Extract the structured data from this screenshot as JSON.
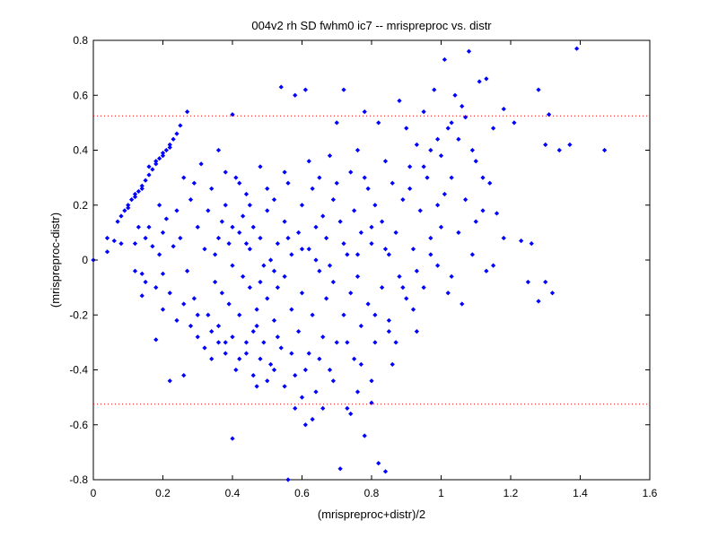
{
  "chart_data": {
    "type": "scatter",
    "title": "004v2 rh SD fwhm0 ic7 -- mrispreproc vs. distr",
    "xlabel": "(mrispreproc+distr)/2",
    "ylabel": "(mrispreproc-distr)",
    "xlim": [
      0,
      1.6
    ],
    "ylim": [
      -0.8,
      0.8
    ],
    "xticks": [
      0,
      0.2,
      0.4,
      0.6,
      0.8,
      1.0,
      1.2,
      1.4,
      1.6
    ],
    "xtick_labels": [
      "0",
      "0.2",
      "0.4",
      "0.6",
      "0.8",
      "1",
      "1.2",
      "1.4",
      "1.6"
    ],
    "yticks": [
      -0.8,
      -0.6,
      -0.4,
      -0.2,
      0,
      0.2,
      0.4,
      0.6,
      0.8
    ],
    "ytick_labels": [
      "-0.8",
      "-0.6",
      "-0.4",
      "-0.2",
      "0",
      "0.2",
      "0.4",
      "0.6",
      "0.8"
    ],
    "grid": false,
    "marker_color": "#0000ff",
    "reference_line_color": "#ff0000",
    "reference_lines_y": [
      0.525,
      -0.525
    ],
    "points": [
      [
        0.0,
        0.0
      ],
      [
        0.04,
        0.03
      ],
      [
        0.04,
        0.08
      ],
      [
        0.06,
        0.07
      ],
      [
        0.08,
        0.06
      ],
      [
        0.07,
        0.14
      ],
      [
        0.08,
        0.16
      ],
      [
        0.09,
        0.18
      ],
      [
        0.1,
        0.2
      ],
      [
        0.11,
        0.22
      ],
      [
        0.12,
        0.24
      ],
      [
        0.13,
        0.25
      ],
      [
        0.14,
        0.27
      ],
      [
        0.15,
        0.29
      ],
      [
        0.16,
        0.31
      ],
      [
        0.17,
        0.33
      ],
      [
        0.18,
        0.35
      ],
      [
        0.19,
        0.37
      ],
      [
        0.2,
        0.39
      ],
      [
        0.21,
        0.4
      ],
      [
        0.22,
        0.42
      ],
      [
        0.23,
        0.44
      ],
      [
        0.24,
        0.46
      ],
      [
        0.25,
        0.49
      ],
      [
        0.27,
        0.54
      ],
      [
        0.16,
        0.34
      ],
      [
        0.18,
        0.36
      ],
      [
        0.2,
        0.38
      ],
      [
        0.22,
        0.41
      ],
      [
        0.14,
        0.26
      ],
      [
        0.12,
        0.23
      ],
      [
        0.1,
        0.19
      ],
      [
        0.13,
        0.12
      ],
      [
        0.12,
        0.06
      ],
      [
        0.15,
        0.08
      ],
      [
        0.14,
        -0.05
      ],
      [
        0.12,
        -0.04
      ],
      [
        0.15,
        -0.08
      ],
      [
        0.14,
        -0.13
      ],
      [
        0.18,
        -0.1
      ],
      [
        0.18,
        -0.29
      ],
      [
        0.22,
        -0.44
      ],
      [
        0.26,
        -0.42
      ],
      [
        0.19,
        0.02
      ],
      [
        0.2,
        0.1
      ],
      [
        0.21,
        0.15
      ],
      [
        0.2,
        -0.05
      ],
      [
        0.16,
        0.12
      ],
      [
        0.17,
        0.05
      ],
      [
        0.19,
        0.2
      ],
      [
        0.23,
        0.05
      ],
      [
        0.24,
        0.18
      ],
      [
        0.25,
        0.08
      ],
      [
        0.26,
        0.3
      ],
      [
        0.27,
        -0.04
      ],
      [
        0.28,
        0.22
      ],
      [
        0.29,
        -0.14
      ],
      [
        0.3,
        0.12
      ],
      [
        0.3,
        -0.28
      ],
      [
        0.31,
        0.35
      ],
      [
        0.32,
        0.04
      ],
      [
        0.33,
        -0.2
      ],
      [
        0.34,
        0.26
      ],
      [
        0.34,
        -0.36
      ],
      [
        0.35,
        0.02
      ],
      [
        0.35,
        -0.08
      ],
      [
        0.36,
        0.4
      ],
      [
        0.36,
        -0.24
      ],
      [
        0.37,
        0.14
      ],
      [
        0.37,
        -0.12
      ],
      [
        0.38,
        0.2
      ],
      [
        0.38,
        -0.3
      ],
      [
        0.39,
        0.06
      ],
      [
        0.39,
        -0.16
      ],
      [
        0.4,
        0.53
      ],
      [
        0.4,
        -0.65
      ],
      [
        0.4,
        -0.02
      ],
      [
        0.41,
        0.3
      ],
      [
        0.41,
        -0.4
      ],
      [
        0.42,
        0.1
      ],
      [
        0.42,
        -0.2
      ],
      [
        0.43,
        -0.06
      ],
      [
        0.43,
        0.16
      ],
      [
        0.44,
        -0.34
      ],
      [
        0.44,
        0.24
      ],
      [
        0.45,
        -0.1
      ],
      [
        0.45,
        0.04
      ],
      [
        0.46,
        -0.26
      ],
      [
        0.46,
        0.12
      ],
      [
        0.47,
        -0.46
      ],
      [
        0.47,
        -0.18
      ],
      [
        0.48,
        0.08
      ],
      [
        0.48,
        0.34
      ],
      [
        0.49,
        -0.3
      ],
      [
        0.49,
        -0.02
      ],
      [
        0.5,
        0.18
      ],
      [
        0.5,
        -0.14
      ],
      [
        0.51,
        -0.38
      ],
      [
        0.51,
        0.0
      ],
      [
        0.52,
        0.22
      ],
      [
        0.52,
        -0.22
      ],
      [
        0.53,
        0.06
      ],
      [
        0.53,
        -0.1
      ],
      [
        0.54,
        0.63
      ],
      [
        0.54,
        -0.32
      ],
      [
        0.55,
        0.14
      ],
      [
        0.55,
        -0.06
      ],
      [
        0.56,
        -0.8
      ],
      [
        0.56,
        0.28
      ],
      [
        0.57,
        -0.18
      ],
      [
        0.57,
        0.02
      ],
      [
        0.58,
        0.6
      ],
      [
        0.58,
        -0.42
      ],
      [
        0.59,
        0.1
      ],
      [
        0.59,
        -0.26
      ],
      [
        0.6,
        0.2
      ],
      [
        0.6,
        -0.12
      ],
      [
        0.61,
        0.62
      ],
      [
        0.61,
        -0.6
      ],
      [
        0.62,
        0.04
      ],
      [
        0.62,
        -0.34
      ],
      [
        0.63,
        0.26
      ],
      [
        0.63,
        -0.2
      ],
      [
        0.64,
        0.12
      ],
      [
        0.64,
        -0.48
      ],
      [
        0.65,
        -0.04
      ],
      [
        0.65,
        0.3
      ],
      [
        0.66,
        -0.28
      ],
      [
        0.66,
        0.16
      ],
      [
        0.67,
        -0.14
      ],
      [
        0.67,
        0.08
      ],
      [
        0.68,
        0.38
      ],
      [
        0.68,
        -0.4
      ],
      [
        0.69,
        0.22
      ],
      [
        0.69,
        -0.08
      ],
      [
        0.7,
        0.5
      ],
      [
        0.7,
        -0.3
      ],
      [
        0.71,
        -0.76
      ],
      [
        0.71,
        0.14
      ],
      [
        0.72,
        0.62
      ],
      [
        0.72,
        -0.2
      ],
      [
        0.73,
        0.02
      ],
      [
        0.73,
        -0.54
      ],
      [
        0.74,
        0.32
      ],
      [
        0.74,
        -0.12
      ],
      [
        0.75,
        0.18
      ],
      [
        0.75,
        -0.36
      ],
      [
        0.76,
        -0.06
      ],
      [
        0.76,
        0.4
      ],
      [
        0.77,
        -0.24
      ],
      [
        0.77,
        0.1
      ],
      [
        0.78,
        0.54
      ],
      [
        0.78,
        -0.64
      ],
      [
        0.79,
        0.26
      ],
      [
        0.79,
        -0.16
      ],
      [
        0.8,
        0.06
      ],
      [
        0.8,
        -0.44
      ],
      [
        0.81,
        0.2
      ],
      [
        0.81,
        -0.3
      ],
      [
        0.82,
        0.5
      ],
      [
        0.82,
        -0.74
      ],
      [
        0.83,
        -0.1
      ],
      [
        0.83,
        0.14
      ],
      [
        0.84,
        -0.77
      ],
      [
        0.84,
        0.36
      ],
      [
        0.85,
        -0.22
      ],
      [
        0.85,
        0.02
      ],
      [
        0.86,
        0.28
      ],
      [
        0.86,
        -0.38
      ],
      [
        0.87,
        0.1
      ],
      [
        0.88,
        0.58
      ],
      [
        0.88,
        -0.06
      ],
      [
        0.89,
        0.22
      ],
      [
        0.9,
        0.48
      ],
      [
        0.9,
        -0.14
      ],
      [
        0.91,
        0.34
      ],
      [
        0.92,
        0.04
      ],
      [
        0.93,
        0.42
      ],
      [
        0.93,
        -0.26
      ],
      [
        0.94,
        0.18
      ],
      [
        0.95,
        0.54
      ],
      [
        0.95,
        -0.1
      ],
      [
        0.96,
        0.3
      ],
      [
        0.97,
        0.08
      ],
      [
        0.97,
        0.4
      ],
      [
        0.98,
        0.62
      ],
      [
        0.99,
        0.2
      ],
      [
        0.99,
        -0.02
      ],
      [
        1.0,
        0.38
      ],
      [
        1.0,
        0.12
      ],
      [
        1.01,
        0.73
      ],
      [
        1.01,
        0.24
      ],
      [
        1.02,
        0.48
      ],
      [
        1.03,
        -0.06
      ],
      [
        1.03,
        0.3
      ],
      [
        1.04,
        0.6
      ],
      [
        1.05,
        0.1
      ],
      [
        1.05,
        0.44
      ],
      [
        1.06,
        -0.16
      ],
      [
        1.07,
        0.22
      ],
      [
        1.07,
        0.52
      ],
      [
        1.08,
        0.76
      ],
      [
        1.09,
        0.02
      ],
      [
        1.1,
        0.36
      ],
      [
        1.11,
        0.65
      ],
      [
        1.12,
        0.18
      ],
      [
        1.13,
        0.66
      ],
      [
        1.13,
        -0.04
      ],
      [
        1.14,
        0.28
      ],
      [
        1.15,
        0.48
      ],
      [
        1.16,
        0.17
      ],
      [
        1.18,
        0.55
      ],
      [
        1.18,
        0.08
      ],
      [
        1.21,
        0.5
      ],
      [
        1.23,
        0.07
      ],
      [
        1.26,
        0.06
      ],
      [
        1.28,
        0.62
      ],
      [
        1.28,
        -0.15
      ],
      [
        1.3,
        0.42
      ],
      [
        1.3,
        -0.08
      ],
      [
        1.31,
        0.53
      ],
      [
        1.32,
        -0.12
      ],
      [
        1.34,
        0.4
      ],
      [
        1.37,
        0.42
      ],
      [
        1.39,
        0.77
      ],
      [
        1.47,
        0.4
      ],
      [
        1.25,
        -0.08
      ],
      [
        1.15,
        -0.02
      ],
      [
        1.1,
        0.14
      ],
      [
        1.02,
        -0.12
      ],
      [
        0.92,
        -0.18
      ],
      [
        0.87,
        -0.3
      ],
      [
        0.8,
        -0.52
      ],
      [
        0.76,
        -0.48
      ],
      [
        0.74,
        -0.56
      ],
      [
        0.66,
        -0.54
      ],
      [
        0.63,
        -0.58
      ],
      [
        0.6,
        -0.5
      ],
      [
        0.58,
        -0.54
      ],
      [
        0.55,
        -0.46
      ],
      [
        0.52,
        -0.4
      ],
      [
        0.5,
        -0.44
      ],
      [
        0.48,
        -0.36
      ],
      [
        0.46,
        -0.42
      ],
      [
        0.44,
        -0.3
      ],
      [
        0.42,
        -0.36
      ],
      [
        0.4,
        -0.28
      ],
      [
        0.38,
        -0.34
      ],
      [
        0.36,
        -0.3
      ],
      [
        0.34,
        -0.26
      ],
      [
        0.32,
        -0.32
      ],
      [
        0.3,
        -0.2
      ],
      [
        0.28,
        -0.24
      ],
      [
        0.26,
        -0.16
      ],
      [
        0.24,
        -0.22
      ],
      [
        0.22,
        -0.12
      ],
      [
        0.2,
        -0.18
      ],
      [
        0.36,
        0.08
      ],
      [
        0.4,
        0.12
      ],
      [
        0.44,
        0.06
      ],
      [
        0.48,
        -0.08
      ],
      [
        0.52,
        -0.04
      ],
      [
        0.56,
        0.08
      ],
      [
        0.6,
        0.04
      ],
      [
        0.64,
        0.0
      ],
      [
        0.68,
        -0.02
      ],
      [
        0.72,
        0.06
      ],
      [
        0.76,
        0.02
      ],
      [
        0.8,
        0.12
      ],
      [
        0.84,
        0.04
      ],
      [
        0.45,
        0.2
      ],
      [
        0.5,
        0.26
      ],
      [
        0.55,
        0.32
      ],
      [
        0.62,
        0.36
      ],
      [
        0.7,
        0.28
      ],
      [
        0.78,
        0.3
      ],
      [
        0.42,
        0.28
      ],
      [
        0.38,
        0.32
      ],
      [
        0.33,
        0.18
      ],
      [
        0.29,
        0.28
      ],
      [
        0.47,
        -0.24
      ],
      [
        0.53,
        -0.28
      ],
      [
        0.57,
        -0.34
      ],
      [
        0.61,
        -0.4
      ],
      [
        0.65,
        -0.36
      ],
      [
        0.69,
        -0.44
      ],
      [
        0.73,
        -0.3
      ],
      [
        0.77,
        -0.38
      ],
      [
        0.81,
        -0.2
      ],
      [
        0.85,
        -0.26
      ],
      [
        0.89,
        -0.1
      ],
      [
        0.93,
        -0.04
      ],
      [
        0.97,
        0.02
      ],
      [
        0.91,
        0.26
      ],
      [
        0.95,
        0.34
      ],
      [
        0.99,
        0.44
      ],
      [
        1.03,
        0.5
      ],
      [
        1.06,
        0.56
      ],
      [
        1.09,
        0.4
      ],
      [
        1.12,
        0.3
      ]
    ]
  }
}
